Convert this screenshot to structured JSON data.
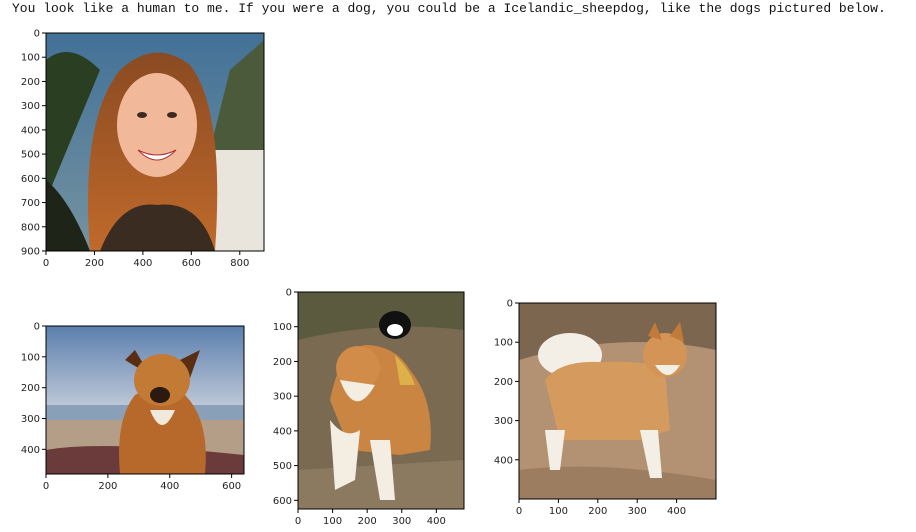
{
  "caption": "You look like a human to me. If you were a dog, you could be a Icelandic_sheepdog, like the dogs pictured below.",
  "images": [
    {
      "subject": "human",
      "x_ticks": [
        "0",
        "200",
        "400",
        "600",
        "800"
      ],
      "y_ticks": [
        "0",
        "100",
        "200",
        "300",
        "400",
        "500",
        "600",
        "700",
        "800",
        "900"
      ],
      "x_range": [
        0,
        900
      ],
      "y_range": [
        0,
        900
      ]
    },
    {
      "subject": "dog-1",
      "x_ticks": [
        "0",
        "200",
        "400",
        "600"
      ],
      "y_ticks": [
        "0",
        "100",
        "200",
        "300",
        "400"
      ],
      "x_range": [
        0,
        640
      ],
      "y_range": [
        0,
        480
      ]
    },
    {
      "subject": "dog-2",
      "x_ticks": [
        "0",
        "100",
        "200",
        "300",
        "400"
      ],
      "y_ticks": [
        "0",
        "100",
        "200",
        "300",
        "400",
        "500",
        "600"
      ],
      "x_range": [
        0,
        480
      ],
      "y_range": [
        0,
        625
      ]
    },
    {
      "subject": "dog-3",
      "x_ticks": [
        "0",
        "100",
        "200",
        "300",
        "400"
      ],
      "y_ticks": [
        "0",
        "100",
        "200",
        "300",
        "400"
      ],
      "x_range": [
        0,
        500
      ],
      "y_range": [
        0,
        500
      ]
    }
  ]
}
